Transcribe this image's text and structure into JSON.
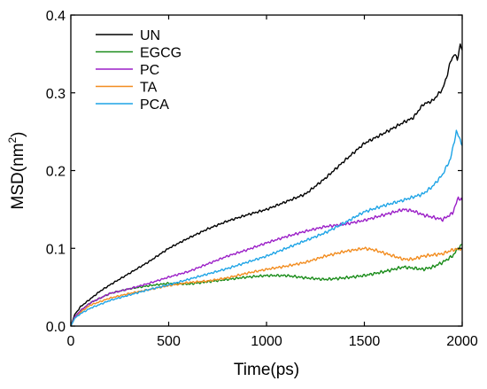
{
  "chart_data": {
    "type": "line",
    "title": "",
    "xlabel": "Time(ps)",
    "ylabel_main": "MSD(nm",
    "ylabel_sup": "2",
    "ylabel_close": ")",
    "xlim": [
      0,
      2000
    ],
    "ylim": [
      0,
      0.4
    ],
    "xticks": [
      0,
      500,
      1000,
      1500,
      2000
    ],
    "xtick_labels": [
      "0",
      "500",
      "1000",
      "1500",
      "2000"
    ],
    "yticks": [
      0.0,
      0.1,
      0.2,
      0.3,
      0.4
    ],
    "ytick_labels": [
      "0.0",
      "0.1",
      "0.2",
      "0.3",
      "0.4"
    ],
    "grid": false,
    "legend_position": "top-left",
    "series": [
      {
        "name": "UN",
        "color": "#000000",
        "x": [
          0,
          20,
          50,
          100,
          150,
          200,
          300,
          400,
          500,
          600,
          700,
          800,
          900,
          1000,
          1100,
          1200,
          1300,
          1400,
          1500,
          1600,
          1700,
          1750,
          1800,
          1850,
          1900,
          1920,
          1940,
          1960,
          1975,
          1990,
          2000
        ],
        "y": [
          0.0,
          0.015,
          0.025,
          0.035,
          0.045,
          0.053,
          0.068,
          0.083,
          0.1,
          0.113,
          0.125,
          0.135,
          0.143,
          0.15,
          0.16,
          0.17,
          0.19,
          0.213,
          0.235,
          0.248,
          0.262,
          0.268,
          0.285,
          0.29,
          0.305,
          0.32,
          0.34,
          0.35,
          0.343,
          0.362,
          0.355
        ]
      },
      {
        "name": "EGCG",
        "color": "#1a8c1a",
        "x": [
          0,
          20,
          50,
          100,
          200,
          300,
          400,
          500,
          600,
          700,
          800,
          900,
          1000,
          1100,
          1200,
          1300,
          1400,
          1500,
          1600,
          1700,
          1800,
          1850,
          1900,
          1950,
          1980,
          2000
        ],
        "y": [
          0.0,
          0.012,
          0.02,
          0.03,
          0.042,
          0.048,
          0.052,
          0.055,
          0.054,
          0.057,
          0.06,
          0.063,
          0.065,
          0.065,
          0.062,
          0.06,
          0.062,
          0.065,
          0.07,
          0.076,
          0.073,
          0.076,
          0.082,
          0.09,
          0.1,
          0.105
        ]
      },
      {
        "name": "PC",
        "color": "#9b1fc7",
        "x": [
          0,
          20,
          50,
          100,
          200,
          300,
          400,
          500,
          600,
          700,
          800,
          900,
          1000,
          1100,
          1200,
          1300,
          1400,
          1500,
          1600,
          1700,
          1750,
          1800,
          1850,
          1900,
          1950,
          1980,
          2000
        ],
        "y": [
          0.0,
          0.012,
          0.02,
          0.03,
          0.042,
          0.048,
          0.055,
          0.063,
          0.07,
          0.08,
          0.09,
          0.098,
          0.107,
          0.115,
          0.122,
          0.128,
          0.131,
          0.136,
          0.143,
          0.15,
          0.148,
          0.143,
          0.14,
          0.137,
          0.145,
          0.165,
          0.162
        ]
      },
      {
        "name": "TA",
        "color": "#f28c1f",
        "x": [
          0,
          20,
          50,
          100,
          200,
          300,
          400,
          500,
          600,
          700,
          800,
          900,
          1000,
          1100,
          1200,
          1300,
          1400,
          1500,
          1550,
          1600,
          1700,
          1750,
          1800,
          1900,
          1950,
          2000
        ],
        "y": [
          0.0,
          0.01,
          0.018,
          0.027,
          0.036,
          0.042,
          0.047,
          0.052,
          0.056,
          0.058,
          0.062,
          0.068,
          0.073,
          0.077,
          0.082,
          0.09,
          0.096,
          0.1,
          0.098,
          0.094,
          0.086,
          0.086,
          0.09,
          0.093,
          0.098,
          0.1
        ]
      },
      {
        "name": "PCA",
        "color": "#1ea4e6",
        "x": [
          0,
          20,
          50,
          100,
          200,
          300,
          400,
          500,
          600,
          700,
          800,
          900,
          1000,
          1100,
          1200,
          1300,
          1400,
          1500,
          1600,
          1700,
          1800,
          1850,
          1900,
          1940,
          1970,
          1990,
          2000
        ],
        "y": [
          0.0,
          0.01,
          0.016,
          0.023,
          0.033,
          0.04,
          0.047,
          0.053,
          0.06,
          0.067,
          0.074,
          0.082,
          0.09,
          0.1,
          0.11,
          0.12,
          0.133,
          0.147,
          0.155,
          0.162,
          0.17,
          0.18,
          0.195,
          0.215,
          0.25,
          0.24,
          0.232
        ]
      }
    ]
  }
}
